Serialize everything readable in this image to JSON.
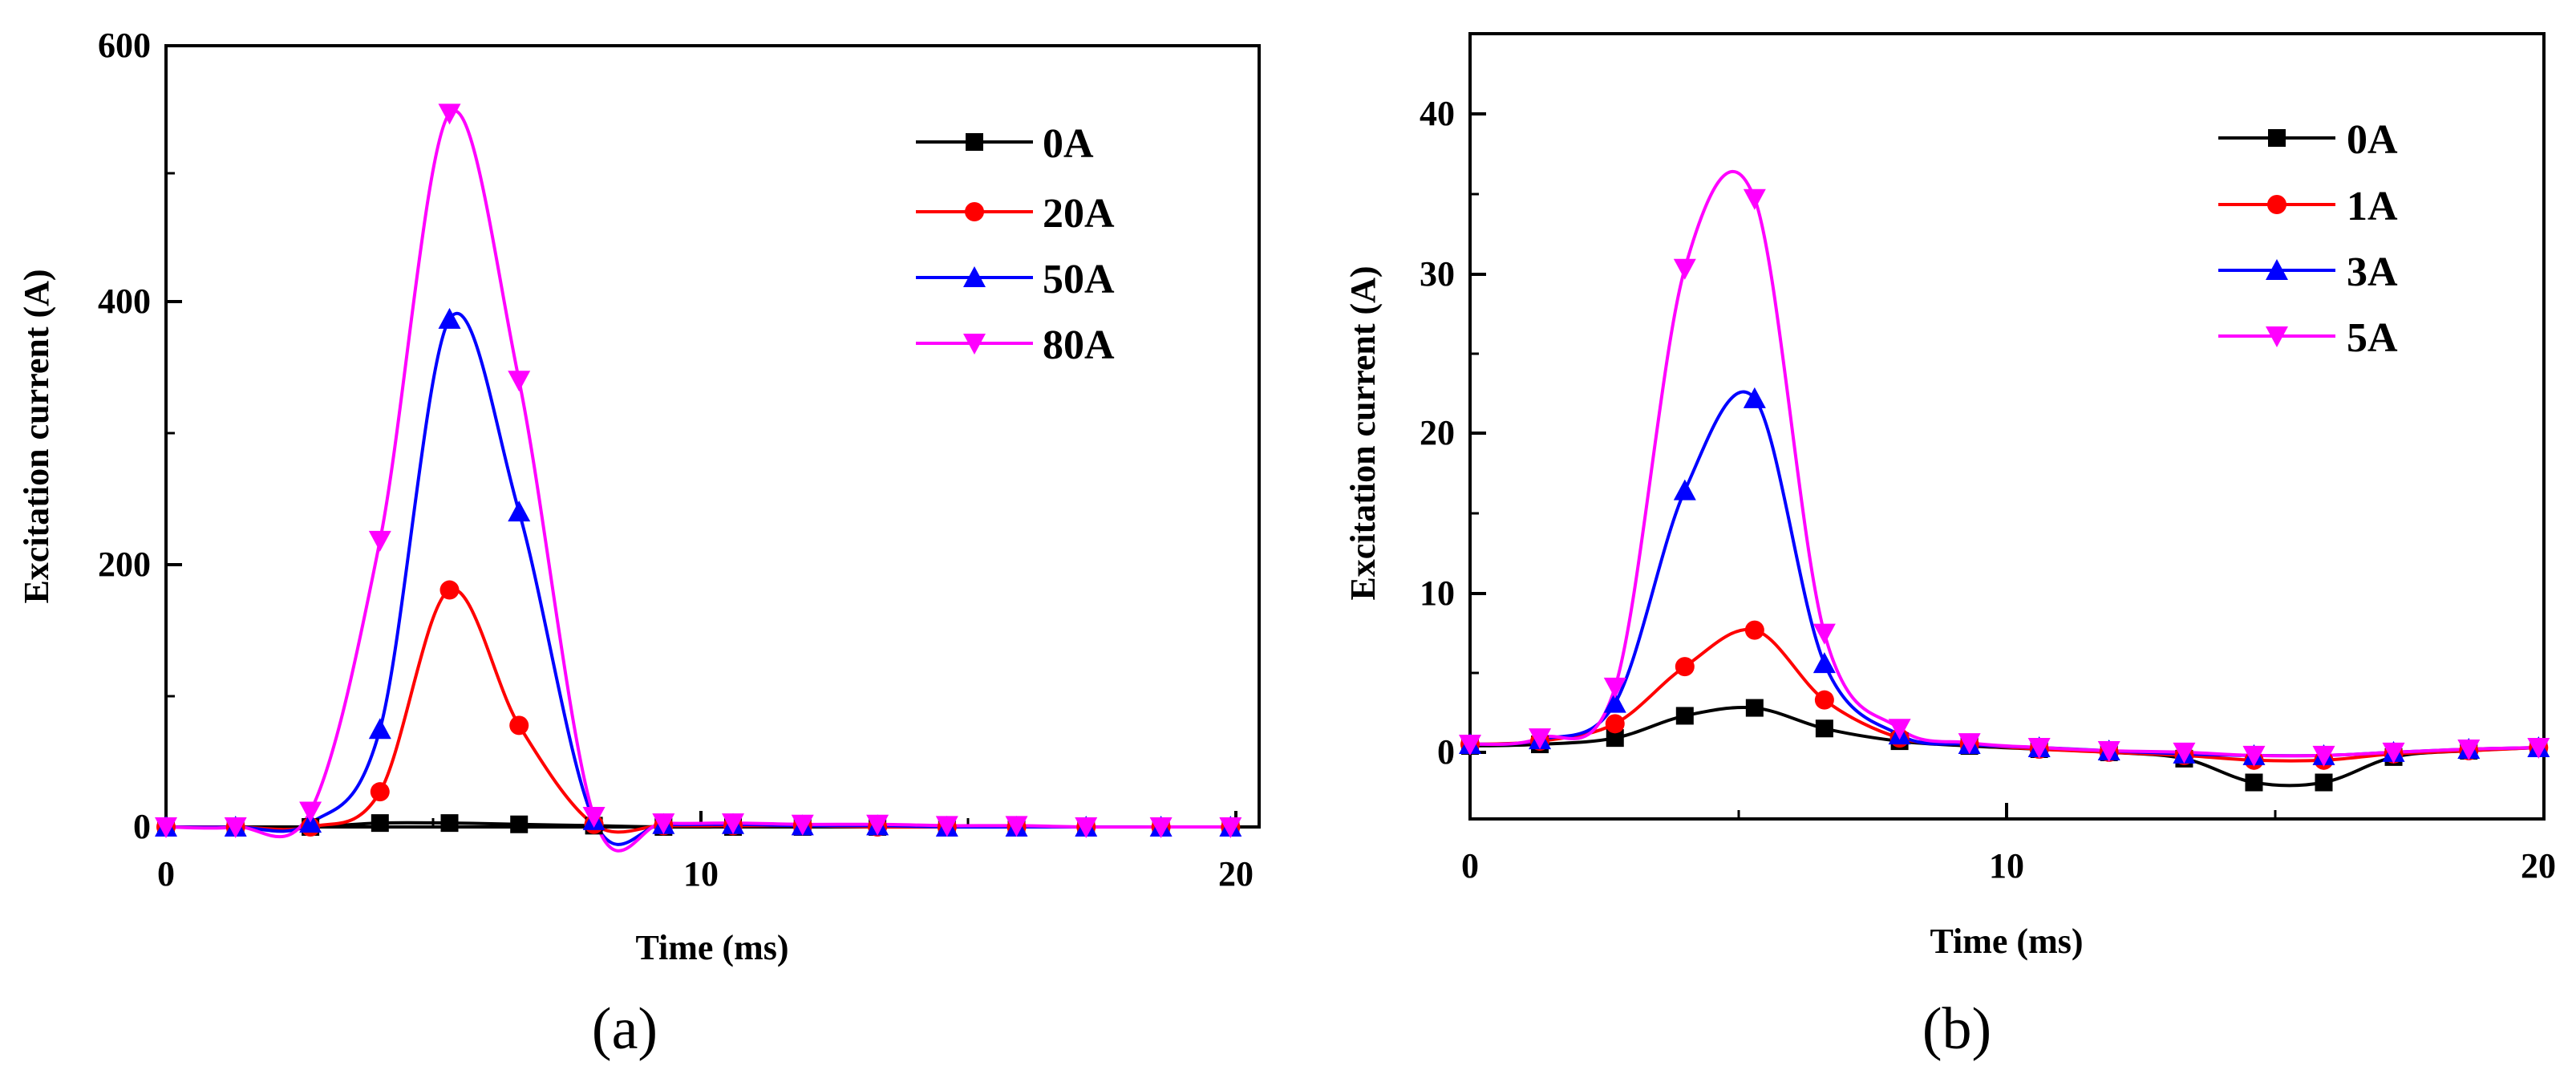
{
  "chart_data": [
    {
      "type": "line",
      "panel_label": "(a)",
      "xlabel": "Time (ms)",
      "ylabel": "Excitation current (A)",
      "xlim": [
        0,
        20
      ],
      "ylim": [
        0,
        600
      ],
      "x_ticks": [
        "0",
        "10",
        "20"
      ],
      "y_ticks": [
        "0",
        "200",
        "400",
        "600"
      ],
      "grid": false,
      "legend_position": "top-right",
      "series": [
        {
          "name": "0A",
          "color": "#000000",
          "marker": "square",
          "x": [
            0,
            1.3,
            2.7,
            4,
            5.3,
            6.6,
            8,
            9.3,
            10.6,
            11.9,
            13.3,
            14.6,
            15.9,
            17.2,
            18.6,
            19.9
          ],
          "y": [
            0,
            0,
            0,
            3,
            3,
            2,
            1,
            0,
            0,
            0,
            0,
            0,
            0,
            0,
            0,
            0
          ]
        },
        {
          "name": "20A",
          "color": "#ff0000",
          "marker": "circle",
          "x": [
            0,
            1.3,
            2.7,
            4,
            5.3,
            6.6,
            8,
            9.3,
            10.6,
            11.9,
            13.3,
            14.6,
            15.9,
            17.2,
            18.6,
            19.9
          ],
          "y": [
            0,
            0,
            0,
            27,
            182,
            78,
            2,
            1,
            1,
            1,
            0,
            0,
            0,
            0,
            0,
            0
          ]
        },
        {
          "name": "50A",
          "color": "#0000ff",
          "marker": "triangle-up",
          "x": [
            0,
            1.3,
            2.7,
            4,
            5.3,
            6.6,
            8,
            9.3,
            10.6,
            11.9,
            13.3,
            14.6,
            15.9,
            17.2,
            18.6,
            19.9
          ],
          "y": [
            0,
            0,
            3,
            75,
            390,
            242,
            5,
            2,
            2,
            1,
            1,
            0,
            0,
            0,
            0,
            0
          ]
        },
        {
          "name": "80A",
          "color": "#ff00ff",
          "marker": "triangle-down",
          "x": [
            0,
            1.3,
            2.7,
            4,
            5.3,
            6.6,
            8,
            9.3,
            10.6,
            11.9,
            13.3,
            14.6,
            15.9,
            17.2,
            18.6,
            19.9
          ],
          "y": [
            0,
            0,
            12,
            220,
            548,
            343,
            8,
            3,
            3,
            2,
            2,
            1,
            1,
            0,
            0,
            0
          ]
        }
      ]
    },
    {
      "type": "line",
      "panel_label": "(b)",
      "xlabel": "Time (ms)",
      "ylabel": "Excitation current (A)",
      "xlim": [
        0,
        20
      ],
      "ylim": [
        -4.5,
        45
      ],
      "x_ticks": [
        "0",
        "10",
        "20"
      ],
      "y_ticks": [
        "0",
        "10",
        "20",
        "30",
        "40"
      ],
      "grid": false,
      "legend_position": "top-right",
      "series": [
        {
          "name": "0A",
          "color": "#000000",
          "marker": "square",
          "x": [
            0,
            1.3,
            2.7,
            4,
            5.3,
            6.6,
            8,
            9.3,
            10.6,
            11.9,
            13.3,
            14.6,
            15.9,
            17.2,
            18.6,
            19.9
          ],
          "y": [
            0.1,
            0.2,
            0.6,
            2.0,
            2.5,
            1.2,
            0.4,
            0.1,
            -0.1,
            -0.3,
            -0.7,
            -2.2,
            -2.2,
            -0.6,
            -0.2,
            0
          ]
        },
        {
          "name": "1A",
          "color": "#ff0000",
          "marker": "circle",
          "x": [
            0,
            1.3,
            2.7,
            4,
            5.3,
            6.6,
            8,
            9.3,
            10.6,
            11.9,
            13.3,
            14.6,
            15.9,
            17.2,
            18.6,
            19.9
          ],
          "y": [
            0.2,
            0.4,
            1.5,
            5.1,
            7.4,
            3.0,
            0.6,
            0.2,
            -0.1,
            -0.3,
            -0.5,
            -0.8,
            -0.8,
            -0.4,
            -0.2,
            0
          ]
        },
        {
          "name": "3A",
          "color": "#0000ff",
          "marker": "triangle-up",
          "x": [
            0,
            1.3,
            2.7,
            4,
            5.3,
            6.6,
            8,
            9.3,
            10.6,
            11.9,
            13.3,
            14.6,
            15.9,
            17.2,
            18.6,
            19.9
          ],
          "y": [
            0.2,
            0.5,
            2.8,
            16.2,
            22.0,
            5.3,
            0.8,
            0.2,
            0,
            -0.2,
            -0.4,
            -0.5,
            -0.5,
            -0.3,
            -0.1,
            0
          ]
        },
        {
          "name": "5A",
          "color": "#ff00ff",
          "marker": "triangle-down",
          "x": [
            0,
            1.3,
            2.7,
            4,
            5.3,
            6.6,
            8,
            9.3,
            10.6,
            11.9,
            13.3,
            14.6,
            15.9,
            17.2,
            18.6,
            19.9
          ],
          "y": [
            0.2,
            0.6,
            3.8,
            30.2,
            34.6,
            7.2,
            1.2,
            0.3,
            0,
            -0.2,
            -0.3,
            -0.5,
            -0.5,
            -0.3,
            -0.1,
            0
          ]
        }
      ]
    }
  ]
}
